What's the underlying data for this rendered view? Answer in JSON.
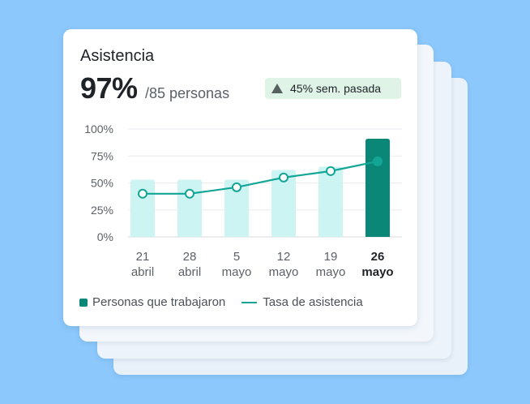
{
  "card": {
    "title": "Asistencia",
    "big_value": "97%",
    "sub_value": "/85 personas",
    "badge_text": "45% sem. pasada",
    "badge_icon": "triangle-up-icon"
  },
  "legend": {
    "bars_label": "Personas que trabajaron",
    "line_label": "Tasa de asistencia"
  },
  "colors": {
    "bar_light": "#ccf4f2",
    "bar_highlight": "#0a8777",
    "line": "#13a596",
    "badge_bg": "#dff3e6",
    "background": "#8cc8fb"
  },
  "chart_data": {
    "type": "bar",
    "categories": [
      [
        "21",
        "abril"
      ],
      [
        "28",
        "abril"
      ],
      [
        "5",
        "mayo"
      ],
      [
        "12",
        "mayo"
      ],
      [
        "19",
        "mayo"
      ],
      [
        "26",
        "mayo"
      ]
    ],
    "y_ticks": [
      "0%",
      "25%",
      "50%",
      "75%",
      "100%"
    ],
    "ylim": [
      0,
      100
    ],
    "grid": true,
    "highlight_index": 5,
    "series": [
      {
        "type": "bar",
        "values": [
          53,
          53,
          53,
          62,
          65,
          91
        ]
      },
      {
        "type": "line",
        "values": [
          40,
          40,
          46,
          55,
          61,
          70
        ]
      }
    ]
  }
}
